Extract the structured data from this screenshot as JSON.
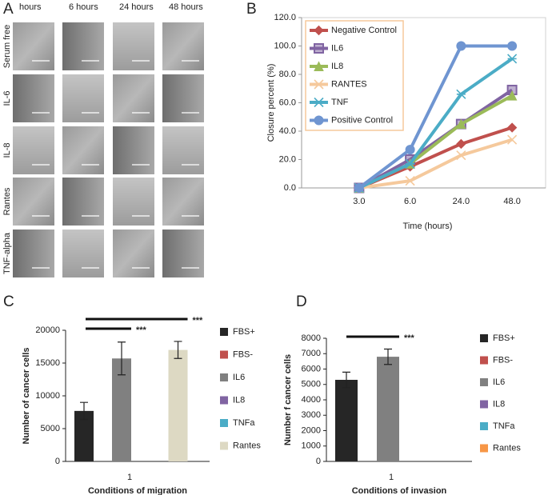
{
  "image_panel": {
    "label": "A",
    "columns": [
      "hours",
      "6 hours",
      "24 hours",
      "48 hours"
    ],
    "rows": [
      "Serum free",
      "IL-6",
      "IL-8",
      "Rantes",
      "TNF-alpha"
    ]
  },
  "chart_data": [
    {
      "label": "B",
      "type": "line",
      "x_label": "Time (hours)",
      "y_label": "Closure percent (%)",
      "categories": [
        "3.0",
        "6.0",
        "24.0",
        "48.0"
      ],
      "ylim": [
        0,
        120
      ],
      "yticks": [
        {
          "value": 0,
          "label": "0.0"
        },
        {
          "value": 20,
          "label": "20.0"
        },
        {
          "value": 40,
          "label": "40.0"
        },
        {
          "value": 60,
          "label": "60.0"
        },
        {
          "value": 80,
          "label": "80.0"
        },
        {
          "value": 100,
          "label": "100.0"
        },
        {
          "value": 120,
          "label": "120.0"
        }
      ],
      "legend": "upper left",
      "series": [
        {
          "name": "Negative Control",
          "color": "#c0504d",
          "marker": "diamond",
          "values": [
            0,
            15,
            31,
            42.5
          ]
        },
        {
          "name": "IL6",
          "color": "#8064a2",
          "marker": "square",
          "values": [
            0,
            20,
            45,
            69
          ]
        },
        {
          "name": "IL8",
          "color": "#9bbb59",
          "marker": "triangle",
          "values": [
            0,
            17,
            45,
            65
          ]
        },
        {
          "name": "RANTES",
          "color": "#f5c99c",
          "marker": "x",
          "values": [
            0,
            5,
            23,
            34
          ]
        },
        {
          "name": "TNF",
          "color": "#4bacc6",
          "marker": "star",
          "values": [
            0,
            17,
            66,
            91
          ]
        },
        {
          "name": "Positive Control",
          "color": "#6f95d1",
          "marker": "circle",
          "values": [
            0,
            27,
            100,
            100
          ]
        }
      ]
    },
    {
      "label": "C",
      "type": "bar",
      "x_label": "Conditions of migration",
      "y_label": "Number of cancer cells",
      "categories": [
        "1"
      ],
      "ylim": [
        0,
        20000
      ],
      "yticks": [
        0,
        5000,
        10000,
        15000,
        20000
      ],
      "legend": "right",
      "series": [
        {
          "name": "FBS+",
          "color": "#262626",
          "values": [
            7700
          ],
          "errors": [
            1300
          ]
        },
        {
          "name": "FBS-",
          "color": "#c0504d",
          "values": [
            null
          ],
          "errors": [
            null
          ]
        },
        {
          "name": "IL6",
          "color": "#808080",
          "values": [
            15700
          ],
          "errors": [
            2500
          ]
        },
        {
          "name": "IL8",
          "color": "#8064a2",
          "values": [
            null
          ],
          "errors": [
            null
          ]
        },
        {
          "name": "TNFa",
          "color": "#4bacc6",
          "values": [
            null
          ],
          "errors": [
            null
          ]
        },
        {
          "name": "Rantes",
          "color": "#ddd9c3",
          "values": [
            17000
          ],
          "errors": [
            1300
          ]
        }
      ],
      "annotations": [
        {
          "text": "***",
          "span": [
            0,
            2
          ]
        },
        {
          "text": "***",
          "span": [
            0,
            5
          ]
        }
      ]
    },
    {
      "label": "D",
      "type": "bar",
      "x_label": "Conditions of invasion",
      "y_label": "Number f cancer cells",
      "categories": [
        "1"
      ],
      "ylim": [
        0,
        8000
      ],
      "yticks": [
        0,
        1000,
        2000,
        3000,
        4000,
        5000,
        6000,
        7000,
        8000
      ],
      "legend": "right",
      "series": [
        {
          "name": "FBS+",
          "color": "#262626",
          "values": [
            5300
          ],
          "errors": [
            500
          ]
        },
        {
          "name": "FBS-",
          "color": "#c0504d",
          "values": [
            null
          ],
          "errors": [
            null
          ]
        },
        {
          "name": "IL6",
          "color": "#808080",
          "values": [
            6800
          ],
          "errors": [
            500
          ]
        },
        {
          "name": "IL8",
          "color": "#8064a2",
          "values": [
            null
          ],
          "errors": [
            null
          ]
        },
        {
          "name": "TNFa",
          "color": "#4bacc6",
          "values": [
            null
          ],
          "errors": [
            null
          ]
        },
        {
          "name": "Rantes",
          "color": "#f79646",
          "values": [
            null
          ],
          "errors": [
            null
          ]
        }
      ],
      "annotations": [
        {
          "text": "***",
          "span": [
            0,
            2
          ]
        }
      ]
    }
  ]
}
